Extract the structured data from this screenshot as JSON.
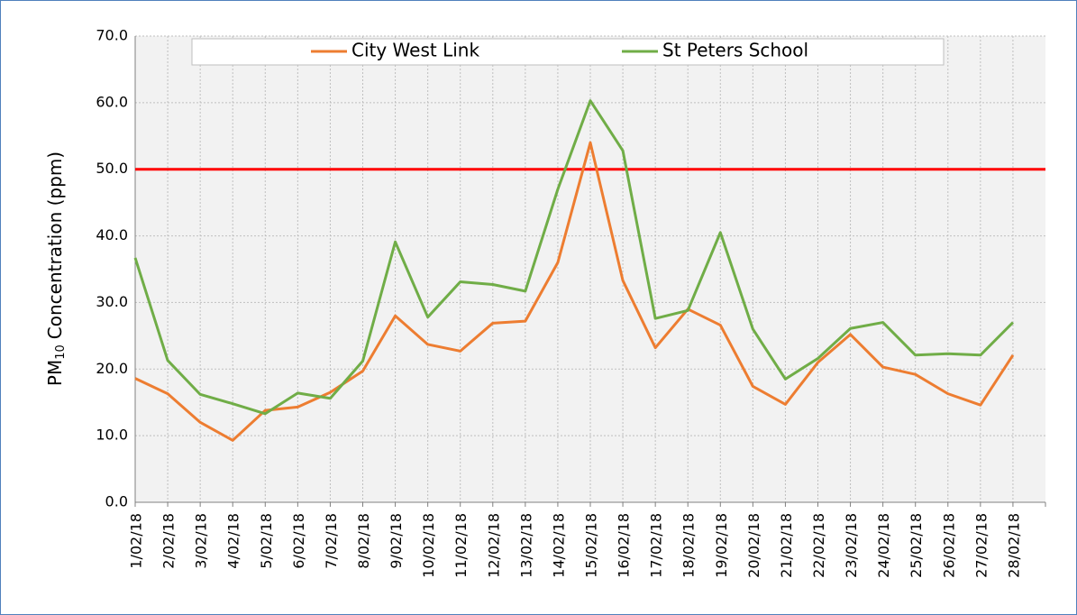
{
  "chart_data": {
    "type": "line",
    "ylabel": {
      "prefix": "PM",
      "subscript": "10",
      "suffix": "Concentration (ppm)"
    },
    "categories": [
      "1/02/18",
      "2/02/18",
      "3/02/18",
      "4/02/18",
      "5/02/18",
      "6/02/18",
      "7/02/18",
      "8/02/18",
      "9/02/18",
      "10/02/18",
      "11/02/18",
      "12/02/18",
      "13/02/18",
      "14/02/18",
      "15/02/18",
      "16/02/18",
      "17/02/18",
      "18/02/18",
      "19/02/18",
      "20/02/18",
      "21/02/18",
      "22/02/18",
      "23/02/18",
      "24/02/18",
      "25/02/18",
      "26/02/18",
      "27/02/18",
      "28/02/18"
    ],
    "series": [
      {
        "name": "City West Link",
        "color": "#ed7d31",
        "values": [
          18.6,
          16.3,
          12.0,
          9.3,
          13.8,
          14.3,
          16.5,
          19.7,
          28.0,
          23.7,
          22.7,
          26.9,
          27.2,
          36.0,
          54.0,
          33.3,
          23.2,
          29.0,
          26.6,
          17.4,
          14.7,
          21.0,
          25.2,
          20.3,
          19.2,
          16.3,
          14.6,
          22.1
        ]
      },
      {
        "name": "St Peters School",
        "color": "#70ad47",
        "values": [
          36.7,
          21.3,
          16.2,
          14.8,
          13.3,
          16.4,
          15.6,
          21.2,
          39.1,
          27.8,
          33.1,
          32.7,
          31.7,
          47.0,
          60.3,
          52.8,
          27.6,
          28.8,
          40.5,
          26.0,
          18.5,
          21.6,
          26.1,
          27.0,
          22.1,
          22.3,
          22.1,
          27.0
        ]
      }
    ],
    "reference_line": {
      "value": 50,
      "color": "#ff0000"
    },
    "ylim": [
      0,
      70
    ],
    "yticks": [
      {
        "value": 0,
        "label": "0.0"
      },
      {
        "value": 10,
        "label": "10.0"
      },
      {
        "value": 20,
        "label": "20.0"
      },
      {
        "value": 30,
        "label": "30.0"
      },
      {
        "value": 40,
        "label": "40.0"
      },
      {
        "value": 50,
        "label": "50.0"
      },
      {
        "value": 60,
        "label": "60.0"
      },
      {
        "value": 70,
        "label": "70.0"
      }
    ],
    "grid": true,
    "legend": "top"
  }
}
